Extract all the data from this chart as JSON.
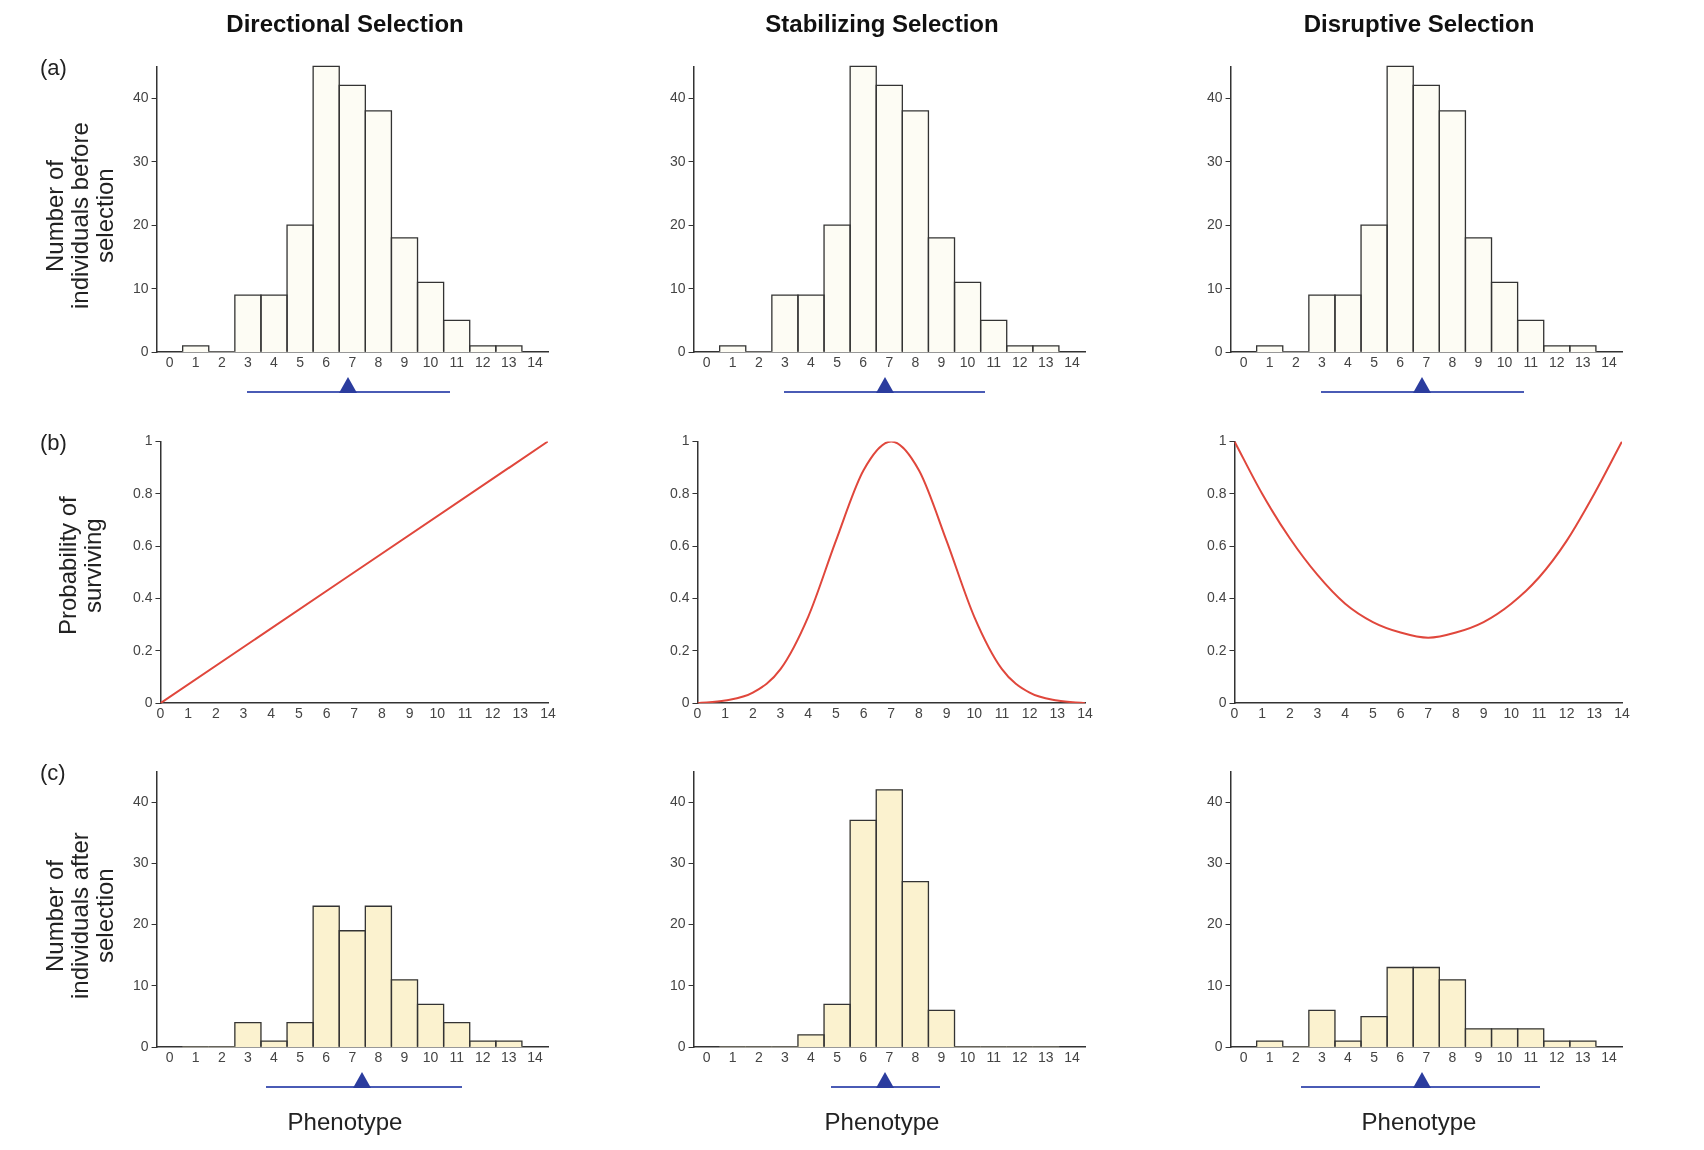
{
  "chart_data": [
    {
      "type": "histogram",
      "title": "Directional Selection",
      "ylabel": "Number of individuals before selection",
      "annotations": [
        "(a)"
      ],
      "bins": [
        0.5,
        1.5,
        2.5,
        3.5,
        4.5,
        5.5,
        6.5,
        7.5,
        8.5,
        9.5,
        10.5,
        11.5,
        12.5,
        13.5
      ],
      "values": [
        1,
        0,
        9,
        9,
        20,
        45,
        42,
        38,
        18,
        11,
        5,
        1,
        1
      ],
      "color": "#fdfcf4",
      "xlim": [
        -0.5,
        14.5
      ],
      "xticks": [
        0,
        1,
        2,
        3,
        4,
        5,
        6,
        7,
        8,
        9,
        10,
        11,
        12,
        13,
        14
      ],
      "ylim": [
        0,
        45
      ],
      "yticks": [
        0,
        10,
        20,
        30,
        40
      ]
    },
    {
      "type": "histogram",
      "title": "Stabilizing Selection",
      "bins": [
        0.5,
        1.5,
        2.5,
        3.5,
        4.5,
        5.5,
        6.5,
        7.5,
        8.5,
        9.5,
        10.5,
        11.5,
        12.5,
        13.5
      ],
      "values": [
        1,
        0,
        9,
        9,
        20,
        45,
        42,
        38,
        18,
        11,
        5,
        1,
        1
      ],
      "color": "#fdfcf4",
      "xlim": [
        -0.5,
        14.5
      ],
      "xticks": [
        0,
        1,
        2,
        3,
        4,
        5,
        6,
        7,
        8,
        9,
        10,
        11,
        12,
        13,
        14
      ],
      "ylim": [
        0,
        45
      ],
      "yticks": [
        0,
        10,
        20,
        30,
        40
      ]
    },
    {
      "type": "histogram",
      "title": "Disruptive Selection",
      "bins": [
        0.5,
        1.5,
        2.5,
        3.5,
        4.5,
        5.5,
        6.5,
        7.5,
        8.5,
        9.5,
        10.5,
        11.5,
        12.5,
        13.5
      ],
      "values": [
        1,
        0,
        9,
        9,
        20,
        45,
        42,
        38,
        18,
        11,
        5,
        1,
        1
      ],
      "color": "#fdfcf4",
      "xlim": [
        -0.5,
        14.5
      ],
      "xticks": [
        0,
        1,
        2,
        3,
        4,
        5,
        6,
        7,
        8,
        9,
        10,
        11,
        12,
        13,
        14
      ],
      "ylim": [
        0,
        45
      ],
      "yticks": [
        0,
        10,
        20,
        30,
        40
      ]
    },
    {
      "type": "line",
      "ylabel": "Probability of surviving",
      "annotations": [
        "(b)"
      ],
      "x": [
        0,
        14
      ],
      "values": [
        0,
        1
      ],
      "color": "#e0473c",
      "xlim": [
        0,
        14
      ],
      "xticks": [
        0,
        1,
        2,
        3,
        4,
        5,
        6,
        7,
        8,
        9,
        10,
        11,
        12,
        13,
        14
      ],
      "ylim": [
        0,
        1
      ],
      "yticks": [
        0,
        0.2,
        0.4,
        0.6,
        0.8,
        1
      ]
    },
    {
      "type": "line",
      "x": [
        0,
        1,
        2,
        3,
        4,
        5,
        6,
        7,
        8,
        9,
        10,
        11,
        12,
        13,
        14
      ],
      "values": [
        0,
        0.01,
        0.04,
        0.13,
        0.33,
        0.62,
        0.89,
        1,
        0.89,
        0.62,
        0.33,
        0.13,
        0.04,
        0.01,
        0
      ],
      "color": "#e0473c",
      "xlim": [
        0,
        14
      ],
      "xticks": [
        0,
        1,
        2,
        3,
        4,
        5,
        6,
        7,
        8,
        9,
        10,
        11,
        12,
        13,
        14
      ],
      "ylim": [
        0,
        1
      ],
      "yticks": [
        0,
        0.2,
        0.4,
        0.6,
        0.8,
        1
      ]
    },
    {
      "type": "line",
      "x": [
        0,
        1,
        2,
        3,
        4,
        5,
        6,
        7,
        8,
        9,
        10,
        11,
        12,
        13,
        14
      ],
      "values": [
        1,
        0.8,
        0.63,
        0.49,
        0.38,
        0.31,
        0.27,
        0.25,
        0.27,
        0.31,
        0.38,
        0.48,
        0.62,
        0.8,
        1
      ],
      "color": "#e0473c",
      "xlim": [
        0,
        14
      ],
      "xticks": [
        0,
        1,
        2,
        3,
        4,
        5,
        6,
        7,
        8,
        9,
        10,
        11,
        12,
        13,
        14
      ],
      "ylim": [
        0,
        1
      ],
      "yticks": [
        0,
        0.2,
        0.4,
        0.6,
        0.8,
        1
      ]
    },
    {
      "type": "histogram",
      "ylabel": "Number of individuals after selection",
      "xlabel": "Phenotype",
      "annotations": [
        "(c)"
      ],
      "bins": [
        0.5,
        1.5,
        2.5,
        3.5,
        4.5,
        5.5,
        6.5,
        7.5,
        8.5,
        9.5,
        10.5,
        11.5,
        12.5,
        13.5
      ],
      "values": [
        0,
        0,
        4,
        1,
        4,
        23,
        19,
        23,
        11,
        7,
        4,
        1,
        1
      ],
      "color": "#fbf2cf",
      "xlim": [
        -0.5,
        14.5
      ],
      "xticks": [
        0,
        1,
        2,
        3,
        4,
        5,
        6,
        7,
        8,
        9,
        10,
        11,
        12,
        13,
        14
      ],
      "ylim": [
        0,
        45
      ],
      "yticks": [
        0,
        10,
        20,
        30,
        40
      ]
    },
    {
      "type": "histogram",
      "xlabel": "Phenotype",
      "bins": [
        0.5,
        1.5,
        2.5,
        3.5,
        4.5,
        5.5,
        6.5,
        7.5,
        8.5,
        9.5,
        10.5,
        11.5,
        12.5,
        13.5
      ],
      "values": [
        0,
        0,
        0,
        2,
        7,
        37,
        42,
        27,
        6,
        0,
        0,
        0,
        0
      ],
      "color": "#fbf2cf",
      "xlim": [
        -0.5,
        14.5
      ],
      "xticks": [
        0,
        1,
        2,
        3,
        4,
        5,
        6,
        7,
        8,
        9,
        10,
        11,
        12,
        13,
        14
      ],
      "ylim": [
        0,
        45
      ],
      "yticks": [
        0,
        10,
        20,
        30,
        40
      ]
    },
    {
      "type": "histogram",
      "xlabel": "Phenotype",
      "bins": [
        0.5,
        1.5,
        2.5,
        3.5,
        4.5,
        5.5,
        6.5,
        7.5,
        8.5,
        9.5,
        10.5,
        11.5,
        12.5,
        13.5
      ],
      "values": [
        1,
        0,
        6,
        1,
        5,
        13,
        13,
        11,
        3,
        3,
        3,
        1,
        1
      ],
      "color": "#fbf2cf",
      "xlim": [
        -0.5,
        14.5
      ],
      "xticks": [
        0,
        1,
        2,
        3,
        4,
        5,
        6,
        7,
        8,
        9,
        10,
        11,
        12,
        13,
        14
      ],
      "ylim": [
        0,
        45
      ],
      "yticks": [
        0,
        10,
        20,
        30,
        40
      ]
    }
  ]
}
